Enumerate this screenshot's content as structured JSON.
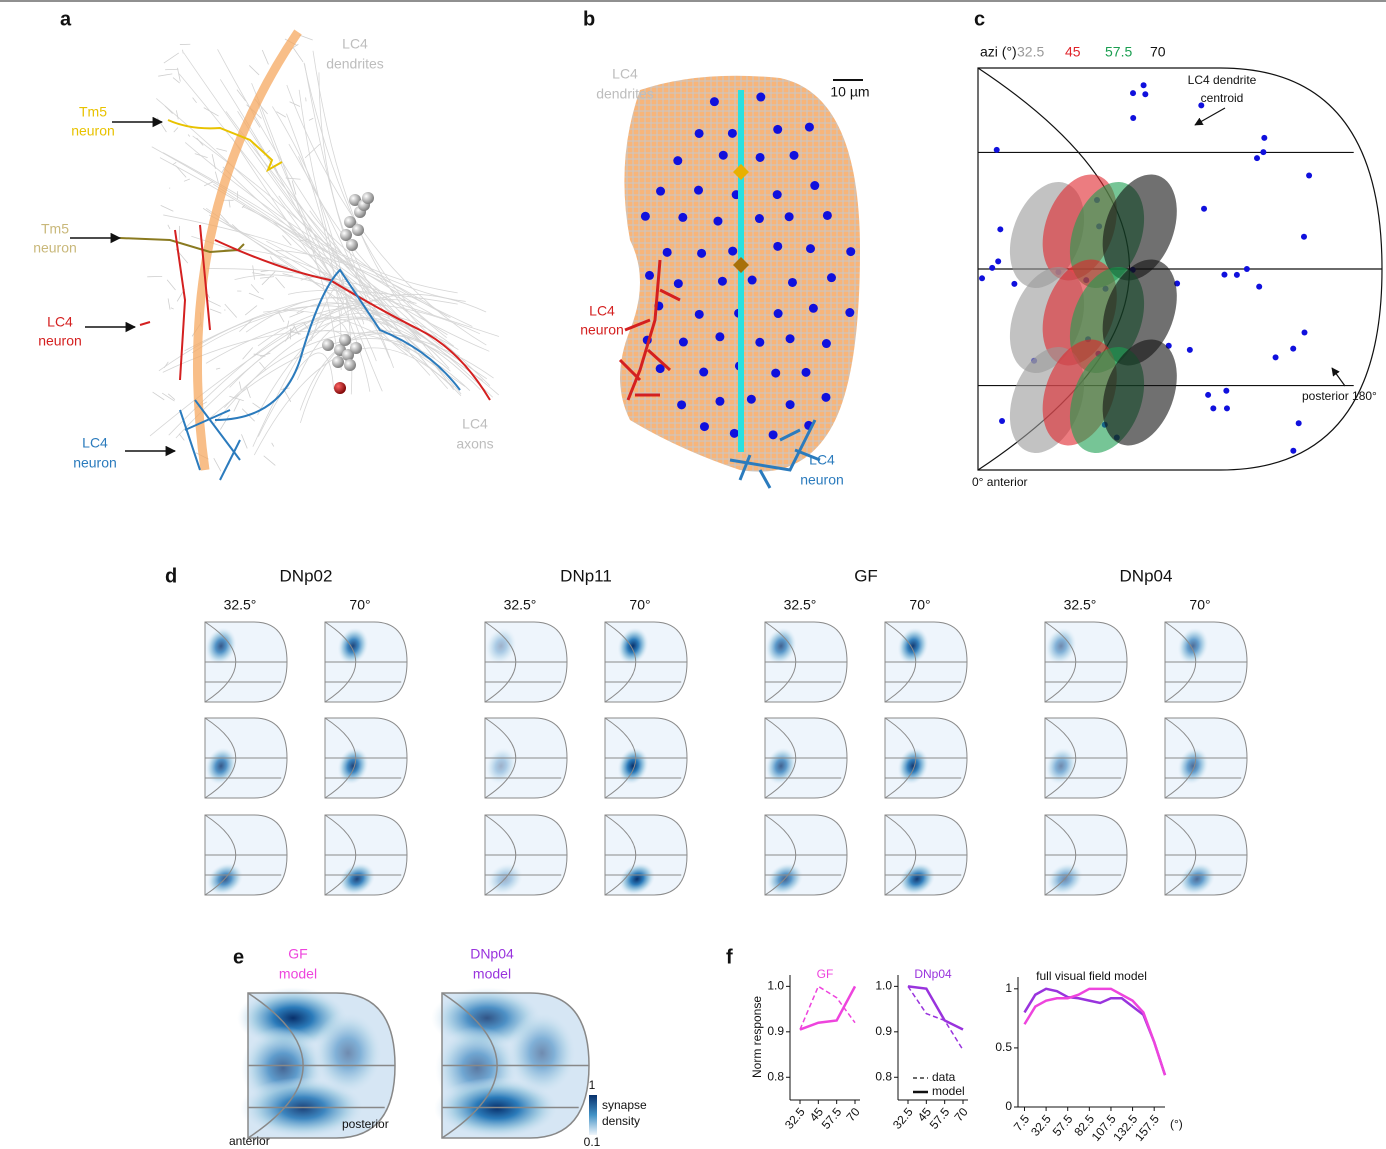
{
  "panel_a": {
    "label": "a",
    "dendrites": [
      "LC4",
      "dendrites"
    ],
    "tm5_yellow": [
      "Tm5",
      "neuron"
    ],
    "tm5_olive": [
      "Tm5",
      "neuron"
    ],
    "lc4_red": [
      "LC4",
      "neuron"
    ],
    "lc4_blue": [
      "LC4",
      "neuron"
    ],
    "axons": [
      "LC4",
      "axons"
    ]
  },
  "panel_b": {
    "label": "b",
    "dendrites": [
      "LC4",
      "dendrites"
    ],
    "scale_bar": "10 µm",
    "lc4_red": [
      "LC4",
      "neuron"
    ],
    "lc4_blue": [
      "LC4",
      "neuron"
    ]
  },
  "panel_c": {
    "label": "c",
    "azi_label": "azi (°)",
    "azimuths": [
      {
        "text": "32.5",
        "color": "#999999"
      },
      {
        "text": "45",
        "color": "#e0242b"
      },
      {
        "text": "57.5",
        "color": "#1a9e50"
      },
      {
        "text": "70",
        "color": "#111111"
      }
    ],
    "centroid": [
      "LC4 dendrite",
      "centroid"
    ],
    "posterior": "posterior 180°",
    "anterior": "0° anterior"
  },
  "panel_d": {
    "label": "d",
    "neurons": [
      "DNp02",
      "DNp11",
      "GF",
      "DNp04"
    ],
    "azimuths": [
      "32.5°",
      "70°"
    ]
  },
  "panel_e": {
    "label": "e",
    "models": [
      {
        "name": [
          "GF",
          "model"
        ],
        "color": "#ee44dd"
      },
      {
        "name": [
          "DNp04",
          "model"
        ],
        "color": "#9933dd"
      }
    ],
    "colorbar": {
      "ticks": [
        1,
        0.1
      ],
      "title": [
        "synapse",
        "density"
      ]
    },
    "anterior": "anterior",
    "posterior": "posterior"
  },
  "panel_f": {
    "label": "f",
    "ylabel": "Norm response",
    "charts": [
      {
        "type": "line",
        "title": "GF",
        "color": "#ee44dd",
        "categories": [
          32.5,
          45,
          57.5,
          70
        ],
        "series": [
          {
            "color": "#ee44dd",
            "dashed": true,
            "values": [
              0.905,
              1.0,
              0.975,
              0.92
            ]
          },
          {
            "color": "#ee44dd",
            "dashed": false,
            "values": [
              0.905,
              0.92,
              0.925,
              1.0
            ]
          }
        ],
        "ylim": [
          0.75,
          1.025
        ],
        "yticks": [
          0.8,
          0.9,
          {
            "value": 1,
            "label": "1.0"
          }
        ]
      },
      {
        "type": "line",
        "title": "DNp04",
        "color": "#9933dd",
        "categories": [
          32.5,
          45,
          57.5,
          70
        ],
        "series": [
          {
            "name": "data",
            "color": "#9933dd",
            "dashed": true,
            "values": [
              1.0,
              0.94,
              0.925,
              0.86
            ]
          },
          {
            "name": "model",
            "color": "#9933dd",
            "dashed": false,
            "values": [
              1.0,
              0.995,
              0.925,
              0.905
            ]
          }
        ],
        "ylim": [
          0.75,
          1.025
        ],
        "yticks": [
          0.8,
          0.9,
          {
            "value": 1,
            "label": "1.0"
          }
        ]
      },
      {
        "type": "line",
        "title": "full visual field model",
        "color": "#111111",
        "xlabel": "(°)",
        "x": [
          7.5,
          20,
          32.5,
          45,
          57.5,
          70,
          82.5,
          95,
          107.5,
          120,
          132.5,
          145,
          157.5,
          170
        ],
        "series": [
          {
            "color": "#9933dd",
            "dashed": false,
            "values": [
              0.8,
              0.95,
              1.0,
              0.98,
              0.93,
              0.92,
              0.9,
              0.88,
              0.92,
              0.92,
              0.85,
              0.78,
              0.55,
              0.27
            ]
          },
          {
            "color": "#ee44dd",
            "dashed": false,
            "values": [
              0.7,
              0.85,
              0.9,
              0.92,
              0.92,
              0.95,
              1.0,
              1.0,
              1.0,
              0.95,
              0.9,
              0.8,
              0.55,
              0.27
            ]
          }
        ],
        "xlim": [
          0,
          170
        ],
        "xticks": [
          7.5,
          32.5,
          57.5,
          82.5,
          107.5,
          132.5,
          157.5
        ],
        "ylim": [
          0,
          1.1
        ],
        "yticks": [
          0,
          0.5,
          1
        ]
      }
    ]
  }
}
